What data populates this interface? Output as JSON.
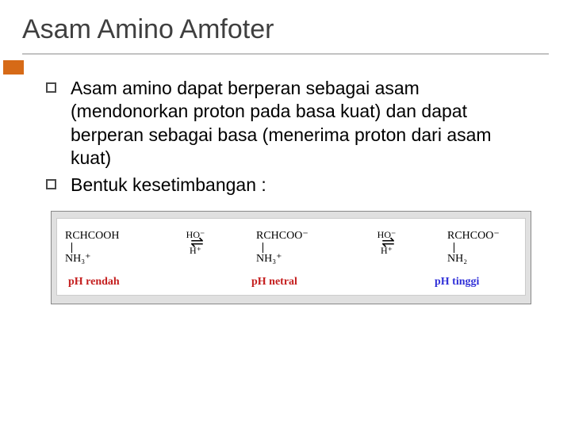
{
  "title": "Asam Amino Amfoter",
  "bullets": [
    "Asam amino dapat berperan sebagai asam (mendonorkan proton pada basa kuat) dan dapat berperan sebagai basa (menerima proton dari asam kuat)",
    "Bentuk kesetimbangan :"
  ],
  "diagram": {
    "species": [
      {
        "top": "RCHCOOH",
        "bottom": "NH₃⁺"
      },
      {
        "top": "RCHCOO⁻",
        "bottom": "NH₃⁺"
      },
      {
        "top": "RCHCOO⁻",
        "bottom": "NH₂"
      }
    ],
    "arrows": [
      {
        "top": "HO⁻",
        "bottom": "H⁺"
      },
      {
        "top": "HO⁻",
        "bottom": "H⁺"
      }
    ],
    "ph_labels": [
      {
        "text": "pH rendah",
        "color": "#c41e1e"
      },
      {
        "text": "pH netral",
        "color": "#c41e1e"
      },
      {
        "text": "pH tinggi",
        "color": "#3030d8"
      }
    ],
    "colors": {
      "box_bg": "#e0e0e0",
      "inner_bg": "#ffffff",
      "border": "#888888"
    }
  },
  "style": {
    "accent_color": "#d66a17",
    "underline_color": "#c2c2c2",
    "title_color": "#3f3f3f",
    "background": "#ffffff"
  }
}
